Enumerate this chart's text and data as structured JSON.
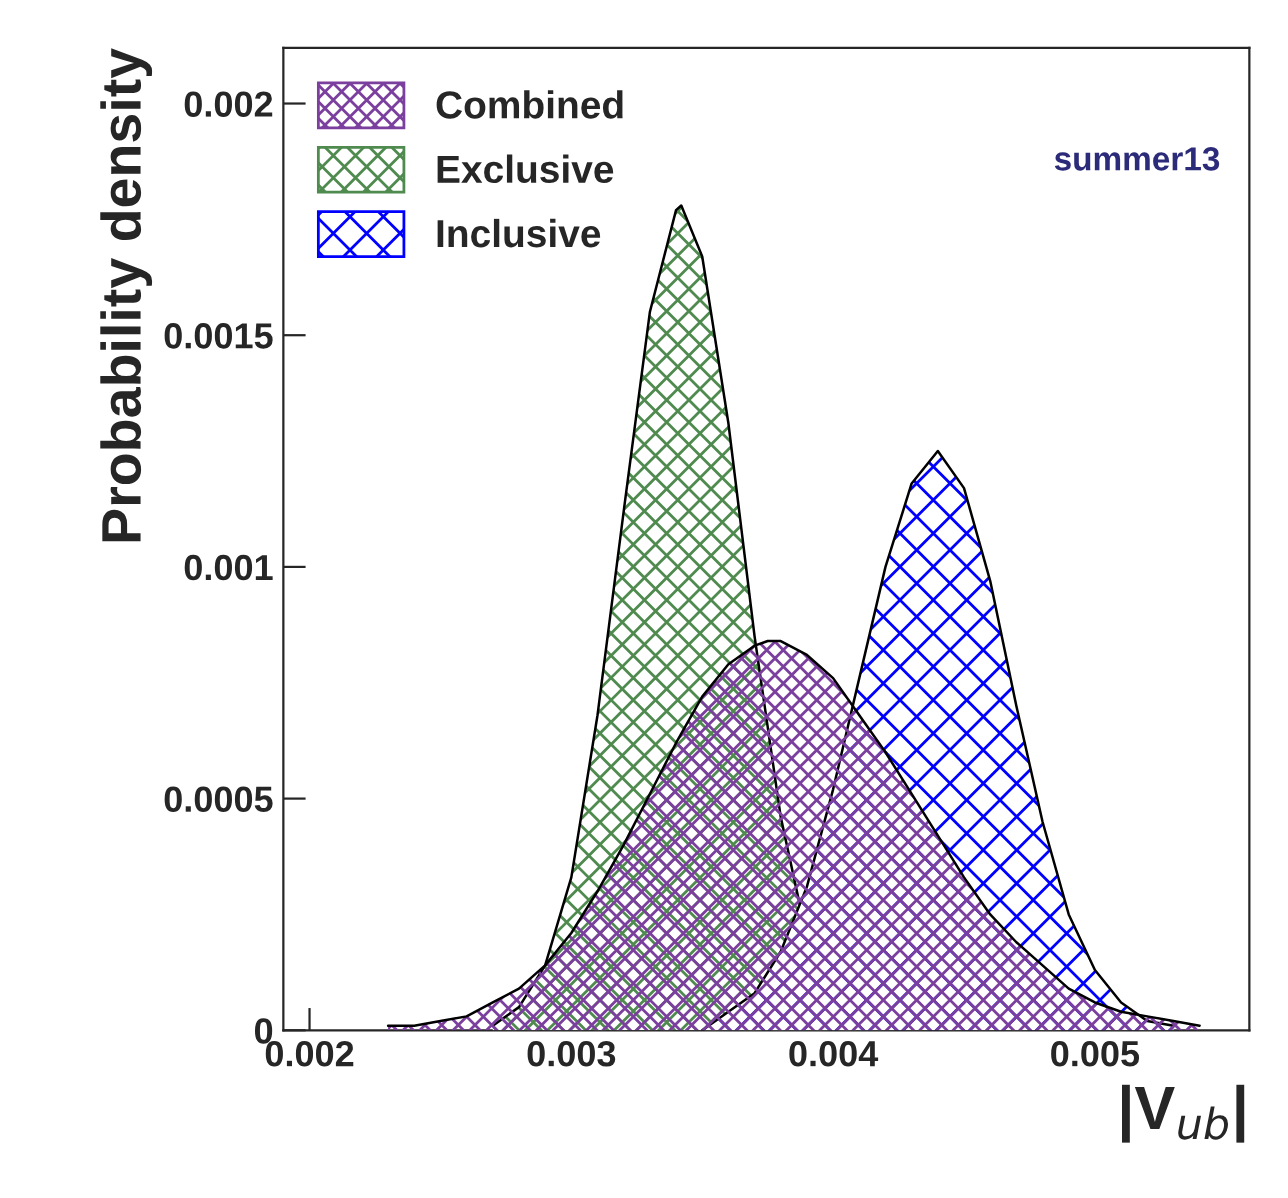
{
  "chart_data": {
    "type": "area",
    "xlabel": "|V$_{ub}$|",
    "ylabel": "Probability density",
    "xlim": [
      0.0019,
      0.00559
    ],
    "ylim": [
      0,
      0.00212
    ],
    "xticks": [
      0.002,
      0.003,
      0.004,
      0.005
    ],
    "yticks": [
      0,
      0.0005,
      0.001,
      0.0015,
      0.002
    ],
    "grid": false,
    "legend": "top left",
    "annotations": [
      "summer13"
    ],
    "series": [
      {
        "name": "Combined",
        "color": "#7b3f9e",
        "x": [
          0.0023,
          0.0024,
          0.0025,
          0.0026,
          0.0027,
          0.0028,
          0.0029,
          0.003,
          0.0031,
          0.0032,
          0.0033,
          0.0034,
          0.0035,
          0.0036,
          0.0037,
          0.00375,
          0.0038,
          0.0039,
          0.004,
          0.0041,
          0.0042,
          0.0043,
          0.0044,
          0.0045,
          0.0046,
          0.0047,
          0.0048,
          0.0049,
          0.005,
          0.0051,
          0.0052,
          0.0053,
          0.0054
        ],
        "values": [
          1e-05,
          1e-05,
          2e-05,
          3e-05,
          6e-05,
          9e-05,
          0.00014,
          0.00021,
          0.0003,
          0.0004,
          0.00051,
          0.00062,
          0.00072,
          0.00079,
          0.00083,
          0.00084,
          0.00084,
          0.00081,
          0.00076,
          0.00068,
          0.0006,
          0.00051,
          0.00042,
          0.00033,
          0.00025,
          0.00019,
          0.00014,
          9e-05,
          6e-05,
          4e-05,
          3e-05,
          2e-05,
          1e-05
        ]
      },
      {
        "name": "Exclusive",
        "color": "#4f8a4f",
        "x": [
          0.0027,
          0.0028,
          0.0029,
          0.003,
          0.0031,
          0.0032,
          0.0033,
          0.0034,
          0.00342,
          0.0035,
          0.0036,
          0.0037,
          0.0038,
          0.0039,
          0.004,
          0.0041,
          0.0042
        ],
        "values": [
          1e-05,
          5e-05,
          0.00014,
          0.00033,
          0.00068,
          0.00112,
          0.00155,
          0.00177,
          0.00178,
          0.00167,
          0.00131,
          0.00085,
          0.00046,
          0.0002,
          8e-05,
          2e-05,
          0.0
        ]
      },
      {
        "name": "Inclusive",
        "color": "#0000ff",
        "x": [
          0.0035,
          0.0036,
          0.0037,
          0.0038,
          0.0039,
          0.004,
          0.0041,
          0.0042,
          0.0043,
          0.0044,
          0.0045,
          0.0046,
          0.0047,
          0.0048,
          0.0049,
          0.005,
          0.0051,
          0.0052,
          0.0053
        ],
        "values": [
          0.0,
          4e-05,
          8e-05,
          0.00017,
          0.00031,
          0.00052,
          0.00076,
          0.001,
          0.00118,
          0.00125,
          0.00117,
          0.00097,
          0.0007,
          0.00045,
          0.00025,
          0.00013,
          6e-05,
          2e-05,
          1e-05
        ]
      }
    ]
  }
}
